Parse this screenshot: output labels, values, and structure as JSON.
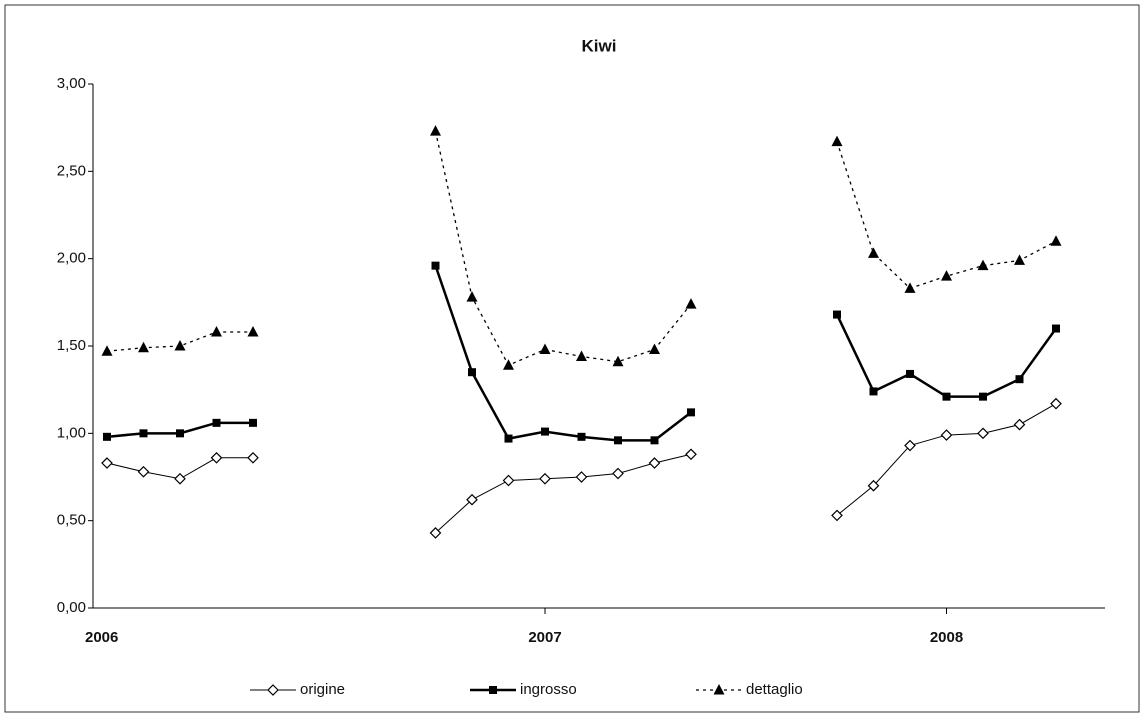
{
  "chart_data": {
    "type": "line",
    "title": "Kiwi",
    "categories": [
      "2006",
      null,
      null,
      null,
      null,
      null,
      null,
      null,
      null,
      null,
      null,
      null,
      "2007",
      null,
      null,
      null,
      null,
      null,
      null,
      null,
      null,
      null,
      null,
      "2008",
      null,
      null,
      null
    ],
    "series": [
      {
        "name": "origine",
        "color": "#000000",
        "marker": "diamond",
        "dash": "solid",
        "width": 1,
        "values": [
          0.83,
          0.78,
          0.74,
          0.86,
          0.86,
          null,
          null,
          null,
          null,
          0.43,
          0.62,
          0.73,
          0.74,
          0.75,
          0.77,
          0.83,
          0.88,
          null,
          null,
          null,
          0.53,
          0.7,
          0.93,
          0.99,
          1.0,
          1.05,
          1.17
        ]
      },
      {
        "name": "ingrosso",
        "color": "#000000",
        "marker": "square",
        "dash": "solid",
        "width": 2.5,
        "values": [
          0.98,
          1.0,
          1.0,
          1.06,
          1.06,
          null,
          null,
          null,
          null,
          1.96,
          1.35,
          0.97,
          1.01,
          0.98,
          0.96,
          0.96,
          1.12,
          null,
          null,
          null,
          1.68,
          1.24,
          1.34,
          1.21,
          1.21,
          1.31,
          1.6
        ]
      },
      {
        "name": "dettaglio",
        "color": "#000000",
        "marker": "triangle",
        "dash": "dotted",
        "width": 1.3,
        "values": [
          1.47,
          1.49,
          1.5,
          1.58,
          1.58,
          null,
          null,
          null,
          null,
          2.73,
          1.78,
          1.39,
          1.48,
          1.44,
          1.41,
          1.48,
          1.74,
          null,
          null,
          null,
          2.67,
          2.03,
          1.83,
          1.9,
          1.96,
          1.99,
          2.1
        ]
      }
    ],
    "ylim": [
      0,
      3
    ],
    "yticks": [
      {
        "value": 0,
        "label": "0,00"
      },
      {
        "value": 0.5,
        "label": "0,50"
      },
      {
        "value": 1,
        "label": "1,00"
      },
      {
        "value": 1.5,
        "label": "1,50"
      },
      {
        "value": 2,
        "label": "2,00"
      },
      {
        "value": 2.5,
        "label": "2,50"
      },
      {
        "value": 3,
        "label": "3,00"
      }
    ],
    "grid": false,
    "legend": "bottom"
  }
}
